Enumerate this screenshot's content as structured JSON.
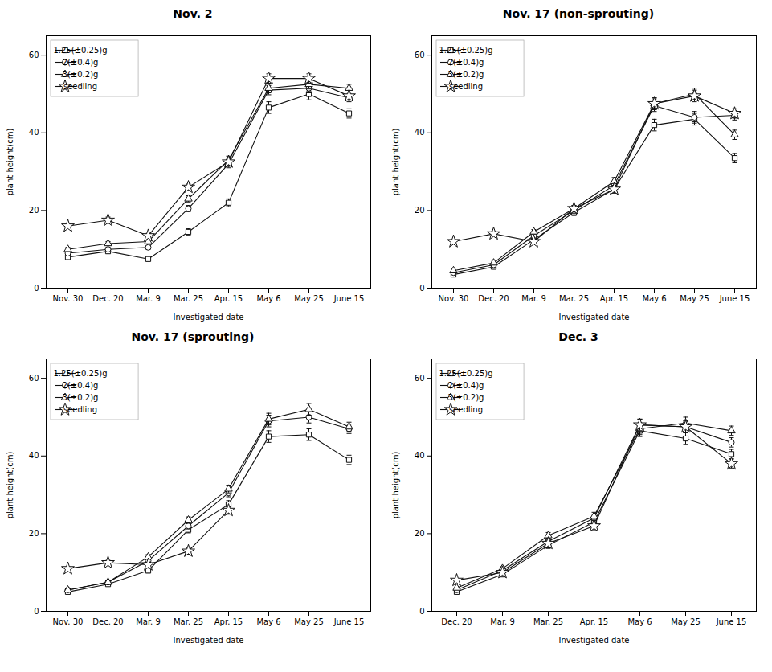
{
  "chart_data": [
    {
      "type": "line",
      "title": "Nov. 2",
      "x_label": "Investigated date",
      "y_label": "plant height(cm)",
      "categories": [
        "Nov. 30",
        "Dec. 20",
        "Mar. 9",
        "Mar. 25",
        "Apr. 15",
        "May 6",
        "May 25",
        "June 15"
      ],
      "series": [
        {
          "name": "1.25(±0.25)g",
          "marker": "square",
          "color": "#111111",
          "values": [
            8.0,
            9.5,
            7.5,
            14.5,
            22.0,
            46.5,
            50.0,
            45.0
          ],
          "errors": [
            0.5,
            0.5,
            0.5,
            0.8,
            1.0,
            1.5,
            1.5,
            1.2
          ]
        },
        {
          "name": "2(±0.4)g",
          "marker": "circle",
          "color": "#111111",
          "values": [
            9.0,
            10.0,
            10.5,
            20.5,
            32.0,
            51.0,
            51.5,
            49.0
          ],
          "errors": [
            0.5,
            0.5,
            0.5,
            0.8,
            1.0,
            1.2,
            1.2,
            1.0
          ]
        },
        {
          "name": "3(±0.2)g",
          "marker": "triangle",
          "color": "#111111",
          "values": [
            10.0,
            11.5,
            12.0,
            23.0,
            33.0,
            51.5,
            52.5,
            51.5
          ],
          "errors": [
            0.5,
            0.5,
            0.6,
            0.8,
            1.0,
            1.2,
            1.2,
            1.0
          ]
        },
        {
          "name": "seedling",
          "marker": "star",
          "color": "#111111",
          "values": [
            16.0,
            17.5,
            13.5,
            26.0,
            32.5,
            54.0,
            54.0,
            49.5
          ],
          "errors": [
            0.6,
            0.8,
            0.6,
            0.8,
            1.0,
            1.2,
            1.2,
            1.0
          ]
        }
      ],
      "ylim": [
        0,
        65
      ],
      "yticks": [
        0,
        20,
        40,
        60
      ],
      "grid": false,
      "legend": "upper left"
    },
    {
      "type": "line",
      "title": "Nov. 17 (non-sprouting)",
      "x_label": "Investigated date",
      "y_label": "plant height(cm)",
      "categories": [
        "Nov. 30",
        "Dec. 20",
        "Mar. 9",
        "Mar. 25",
        "Apr. 15",
        "May 6",
        "May 25",
        "June 15"
      ],
      "series": [
        {
          "name": "1.25(±0.25)g",
          "marker": "square",
          "color": "#111111",
          "values": [
            3.5,
            5.5,
            12.5,
            19.5,
            25.5,
            42.0,
            43.5,
            33.5
          ],
          "errors": [
            0.3,
            0.4,
            0.6,
            0.8,
            1.0,
            1.5,
            1.5,
            1.2
          ]
        },
        {
          "name": "2(±0.4)g",
          "marker": "circle",
          "color": "#111111",
          "values": [
            4.0,
            6.0,
            13.5,
            20.0,
            26.5,
            47.0,
            44.0,
            44.5
          ],
          "errors": [
            0.3,
            0.4,
            0.6,
            0.8,
            1.0,
            1.5,
            1.5,
            1.2
          ]
        },
        {
          "name": "3(±0.2)g",
          "marker": "triangle",
          "color": "#111111",
          "values": [
            4.5,
            6.5,
            14.5,
            20.5,
            27.5,
            47.5,
            50.0,
            39.5
          ],
          "errors": [
            0.3,
            0.4,
            0.6,
            0.8,
            1.0,
            1.5,
            1.5,
            1.2
          ]
        },
        {
          "name": "seedling",
          "marker": "star",
          "color": "#111111",
          "values": [
            12.0,
            14.0,
            12.0,
            20.5,
            25.5,
            47.5,
            49.5,
            45.0
          ],
          "errors": [
            0.5,
            0.6,
            0.6,
            0.8,
            1.0,
            1.5,
            1.5,
            1.2
          ]
        }
      ],
      "ylim": [
        0,
        65
      ],
      "yticks": [
        0,
        20,
        40,
        60
      ],
      "grid": false,
      "legend": "upper left"
    },
    {
      "type": "line",
      "title": "Nov. 17 (sprouting)",
      "x_label": "Investigated date",
      "y_label": "plant height(cm)",
      "categories": [
        "Nov. 30",
        "Dec. 20",
        "Mar. 9",
        "Mar. 25",
        "Apr. 15",
        "May 6",
        "May 25",
        "June 15"
      ],
      "series": [
        {
          "name": "1.25(±0.25)g",
          "marker": "square",
          "color": "#111111",
          "values": [
            5.0,
            7.0,
            10.5,
            21.0,
            27.5,
            45.0,
            45.5,
            39.0
          ],
          "errors": [
            0.3,
            0.4,
            0.6,
            0.8,
            1.0,
            1.5,
            1.5,
            1.2
          ]
        },
        {
          "name": "2(±0.4)g",
          "marker": "circle",
          "color": "#111111",
          "values": [
            5.5,
            7.5,
            13.0,
            22.0,
            30.5,
            49.0,
            50.0,
            47.0
          ],
          "errors": [
            0.3,
            0.4,
            0.6,
            0.8,
            1.0,
            1.5,
            1.5,
            1.2
          ]
        },
        {
          "name": "3(±0.2)g",
          "marker": "triangle",
          "color": "#111111",
          "values": [
            5.5,
            7.5,
            14.0,
            23.5,
            31.5,
            49.5,
            52.0,
            47.5
          ],
          "errors": [
            0.3,
            0.4,
            0.6,
            0.8,
            1.0,
            1.5,
            1.5,
            1.2
          ]
        },
        {
          "name": "seedling",
          "marker": "star",
          "color": "#111111",
          "values": [
            11.0,
            12.5,
            12.0,
            15.5,
            26.0,
            null,
            null,
            null
          ],
          "errors": [
            0.5,
            0.6,
            0.6,
            0.8,
            1.0,
            null,
            null,
            null
          ]
        }
      ],
      "ylim": [
        0,
        65
      ],
      "yticks": [
        0,
        20,
        40,
        60
      ],
      "grid": false,
      "legend": "upper left"
    },
    {
      "type": "line",
      "title": "Dec. 3",
      "x_label": "Investigated date",
      "y_label": "plant height(cm)",
      "categories": [
        "Dec. 20",
        "Mar. 9",
        "Mar. 25",
        "Apr. 15",
        "May 6",
        "May 25",
        "June 15"
      ],
      "series": [
        {
          "name": "1.25(±0.25)g",
          "marker": "square",
          "color": "#111111",
          "values": [
            5.0,
            9.5,
            17.0,
            23.0,
            46.5,
            44.5,
            40.5
          ],
          "errors": [
            0.3,
            0.5,
            0.8,
            1.0,
            1.5,
            1.5,
            1.2
          ]
        },
        {
          "name": "2(±0.4)g",
          "marker": "circle",
          "color": "#111111",
          "values": [
            5.5,
            10.5,
            18.0,
            24.0,
            48.0,
            47.5,
            43.5
          ],
          "errors": [
            0.3,
            0.5,
            0.8,
            1.0,
            1.5,
            1.5,
            1.2
          ]
        },
        {
          "name": "3(±0.2)g",
          "marker": "triangle",
          "color": "#111111",
          "values": [
            6.0,
            11.0,
            19.5,
            24.5,
            47.0,
            48.5,
            46.5
          ],
          "errors": [
            0.3,
            0.5,
            0.8,
            1.0,
            1.5,
            1.5,
            1.2
          ]
        },
        {
          "name": "seedling",
          "marker": "star",
          "color": "#111111",
          "values": [
            8.0,
            10.0,
            17.5,
            22.0,
            48.0,
            47.5,
            38.0
          ],
          "errors": [
            0.4,
            0.5,
            0.8,
            1.0,
            1.5,
            1.5,
            1.2
          ]
        }
      ],
      "ylim": [
        0,
        65
      ],
      "yticks": [
        0,
        20,
        40,
        60
      ],
      "grid": false,
      "legend": "upper left"
    }
  ]
}
